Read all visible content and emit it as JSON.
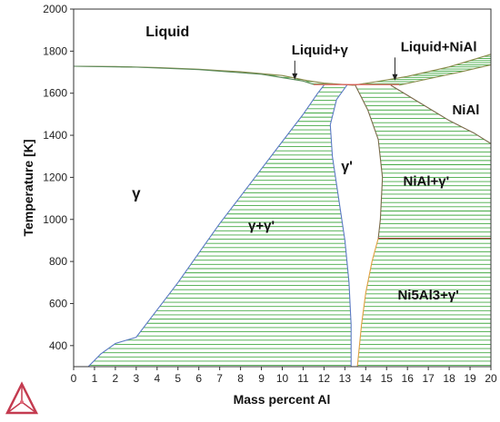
{
  "chart_data": {
    "type": "phase-diagram",
    "xlabel": "Mass percent Al",
    "ylabel": "Temperature [K]",
    "xlim": [
      0,
      20
    ],
    "ylim": [
      300,
      2000
    ],
    "x_ticks": [
      0,
      1,
      2,
      3,
      4,
      5,
      6,
      7,
      8,
      9,
      10,
      11,
      12,
      13,
      14,
      15,
      16,
      17,
      18,
      19,
      20
    ],
    "y_ticks": [
      400,
      600,
      800,
      1000,
      1200,
      1400,
      1600,
      1800,
      2000
    ],
    "grid": false,
    "hatch_color": "#44aa44",
    "regions": [
      {
        "id": "liquid",
        "label": "Liquid",
        "x": 4.5,
        "y": 1870,
        "size": 16
      },
      {
        "id": "gamma",
        "label": "γ",
        "x": 3.0,
        "y": 1100,
        "size": 17
      },
      {
        "id": "gamma-gammaprime",
        "label": "γ+γ'",
        "x": 9.0,
        "y": 950,
        "size": 15
      },
      {
        "id": "gammaprime",
        "label": "γ'",
        "x": 13.1,
        "y": 1230,
        "size": 16
      },
      {
        "id": "nial-gammaprime",
        "label": "NiAl+γ'",
        "x": 16.9,
        "y": 1160,
        "size": 15
      },
      {
        "id": "nial",
        "label": "NiAl",
        "x": 18.8,
        "y": 1500,
        "size": 15
      },
      {
        "id": "ni5al3-gammaprime",
        "label": "Ni5Al3+γ'",
        "x": 17.0,
        "y": 620,
        "size": 15
      }
    ],
    "annotations": [
      {
        "id": "liquid-gamma",
        "label": "Liquid+γ",
        "text_x": 11.8,
        "text_y": 1785,
        "arrow_x": 10.6,
        "arrow_y": 1664
      },
      {
        "id": "liquid-nial",
        "label": "Liquid+NiAl",
        "text_x": 17.5,
        "text_y": 1800,
        "arrow_x": 15.4,
        "arrow_y": 1660
      }
    ],
    "boundaries": [
      {
        "name": "liquidus-gamma",
        "color": "#8a8a4a",
        "points": [
          [
            0,
            1728
          ],
          [
            2,
            1727
          ],
          [
            4,
            1722
          ],
          [
            6,
            1714
          ],
          [
            8,
            1702
          ],
          [
            10,
            1684
          ],
          [
            11.2,
            1660
          ],
          [
            12,
            1648
          ],
          [
            13.4,
            1638
          ]
        ]
      },
      {
        "name": "solidus-gamma",
        "color": "#5a8a5a",
        "points": [
          [
            0,
            1728
          ],
          [
            3,
            1724
          ],
          [
            6,
            1712
          ],
          [
            9,
            1690
          ],
          [
            11,
            1658
          ],
          [
            11.5,
            1642
          ]
        ]
      },
      {
        "name": "liquidus-nial",
        "color": "#8a8a4a",
        "points": [
          [
            13.4,
            1638
          ],
          [
            14.5,
            1655
          ],
          [
            16,
            1680
          ],
          [
            18,
            1725
          ],
          [
            20,
            1785
          ]
        ]
      },
      {
        "name": "solidus-nial",
        "color": "#8a8a4a",
        "points": [
          [
            15.6,
            1638
          ],
          [
            17,
            1668
          ],
          [
            18.5,
            1700
          ],
          [
            20,
            1735
          ]
        ]
      },
      {
        "name": "gamma-solvus",
        "color": "#5b79c4",
        "points": [
          [
            0.7,
            300
          ],
          [
            1.3,
            360
          ],
          [
            2.0,
            410
          ],
          [
            3.0,
            440
          ],
          [
            4.0,
            570
          ],
          [
            5.0,
            700
          ],
          [
            6.0,
            840
          ],
          [
            7.0,
            980
          ],
          [
            8.0,
            1110
          ],
          [
            9.0,
            1240
          ],
          [
            10.0,
            1370
          ],
          [
            11.0,
            1500
          ],
          [
            11.7,
            1600
          ],
          [
            12.0,
            1638
          ]
        ]
      },
      {
        "name": "gammaprime-left",
        "color": "#5b79c4",
        "points": [
          [
            13.3,
            300
          ],
          [
            13.3,
            500
          ],
          [
            13.2,
            700
          ],
          [
            13.0,
            900
          ],
          [
            12.7,
            1100
          ],
          [
            12.4,
            1300
          ],
          [
            12.3,
            1450
          ],
          [
            12.6,
            1570
          ],
          [
            13.1,
            1638
          ]
        ]
      },
      {
        "name": "gammaprime-right",
        "color": "#7a6a4a",
        "points": [
          [
            13.5,
            1638
          ],
          [
            14.1,
            1520
          ],
          [
            14.6,
            1380
          ],
          [
            14.8,
            1200
          ],
          [
            14.7,
            1000
          ],
          [
            14.6,
            910
          ]
        ]
      },
      {
        "name": "gammaprime-right-low",
        "color": "#e0a040",
        "points": [
          [
            14.6,
            910
          ],
          [
            14.3,
            800
          ],
          [
            14.0,
            650
          ],
          [
            13.8,
            500
          ],
          [
            13.6,
            300
          ]
        ]
      },
      {
        "name": "nial-solvus",
        "color": "#7a6a4a",
        "points": [
          [
            15.2,
            1638
          ],
          [
            16.5,
            1560
          ],
          [
            18.0,
            1470
          ],
          [
            19.2,
            1410
          ],
          [
            20,
            1360
          ]
        ]
      },
      {
        "name": "ni5al3-line",
        "color": "#b04040",
        "points": [
          [
            14.6,
            910
          ],
          [
            20,
            910
          ]
        ]
      },
      {
        "name": "three-phase-line",
        "color": "#e05050",
        "points": [
          [
            11.5,
            1641
          ],
          [
            15.6,
            1641
          ]
        ]
      }
    ]
  },
  "logo": {
    "name": "thermo-calc-logo",
    "colors": [
      "#c43b50",
      "#e06a7a"
    ]
  }
}
